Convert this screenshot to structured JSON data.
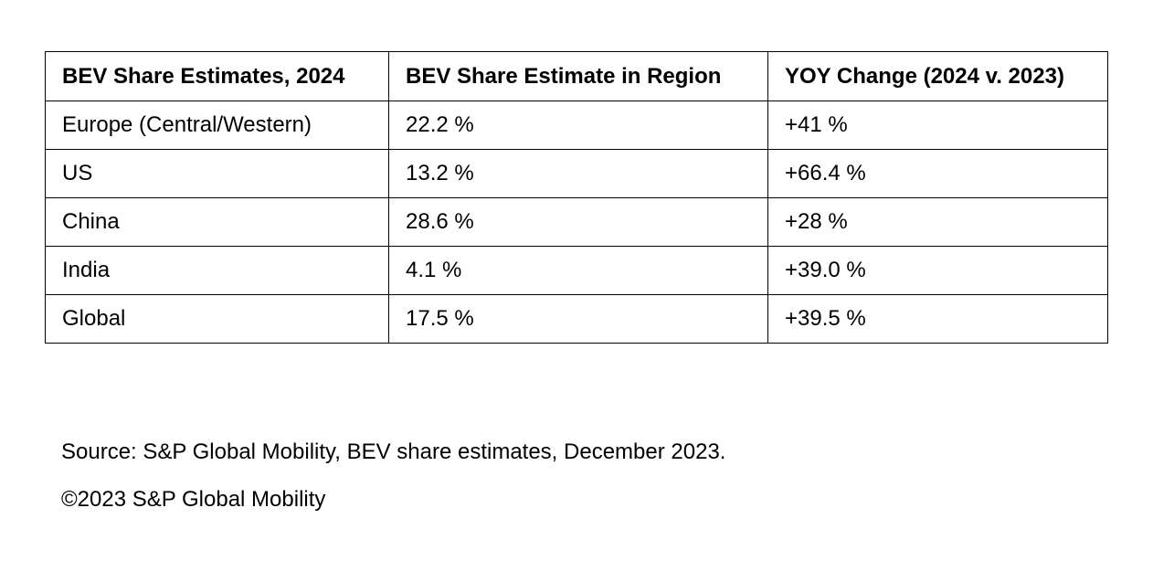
{
  "chart_data": {
    "type": "table",
    "title": "BEV Share Estimates, 2024",
    "columns": [
      "BEV Share Estimates, 2024",
      "BEV Share Estimate in Region",
      "YOY Change (2024 v. 2023)"
    ],
    "rows": [
      {
        "region": "Europe (Central/Western)",
        "share": "22.2 %",
        "yoy": "+41 %"
      },
      {
        "region": "US",
        "share": "13.2 %",
        "yoy": "+66.4 %"
      },
      {
        "region": "China",
        "share": "28.6 %",
        "yoy": "+28 %"
      },
      {
        "region": "India",
        "share": "4.1 %",
        "yoy": "+39.0 %"
      },
      {
        "region": "Global",
        "share": "17.5 %",
        "yoy": "+39.5 %"
      }
    ],
    "values": {
      "share_pct": [
        22.2,
        13.2,
        28.6,
        4.1,
        17.5
      ],
      "yoy_pct": [
        41,
        66.4,
        28,
        39.0,
        39.5
      ]
    }
  },
  "footer": {
    "source": "Source: S&P Global Mobility, BEV share estimates, December 2023.",
    "copyright": "©2023 S&P Global Mobility"
  }
}
